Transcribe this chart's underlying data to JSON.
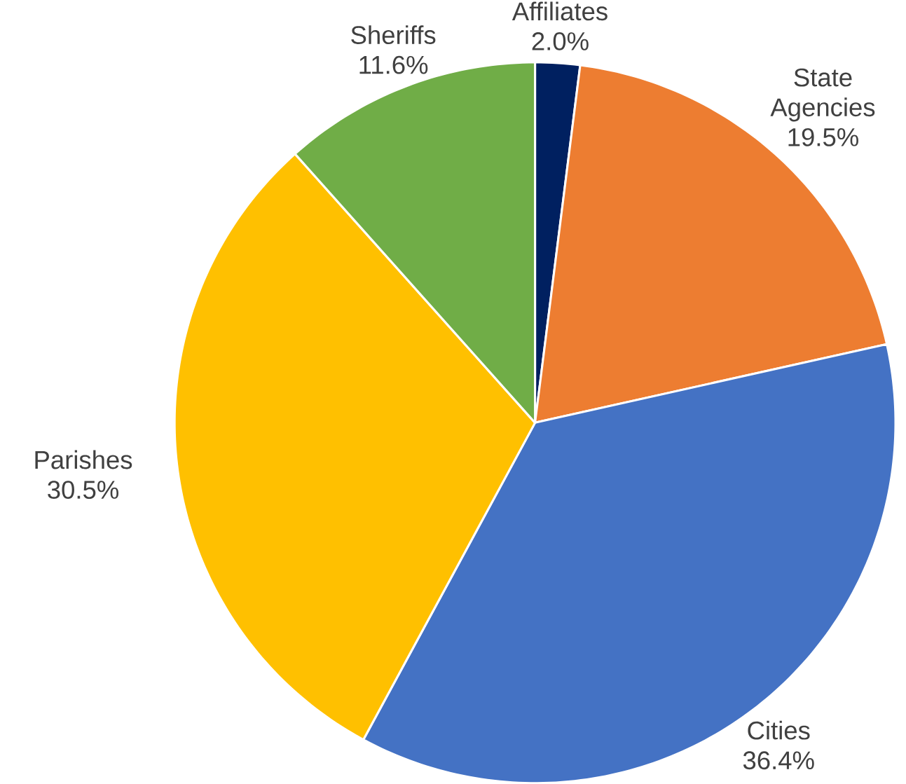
{
  "chart_data": {
    "type": "pie",
    "categories": [
      "Affiliates",
      "State Agencies",
      "Cities",
      "Parishes",
      "Sheriffs"
    ],
    "values": [
      2.0,
      19.5,
      36.4,
      30.5,
      11.6
    ],
    "value_labels": [
      "2.0%",
      "19.5%",
      "36.4%",
      "30.5%",
      "11.6%"
    ],
    "colors": [
      "#002060",
      "#ed7d31",
      "#4472c4",
      "#ffc000",
      "#70ad47"
    ]
  }
}
